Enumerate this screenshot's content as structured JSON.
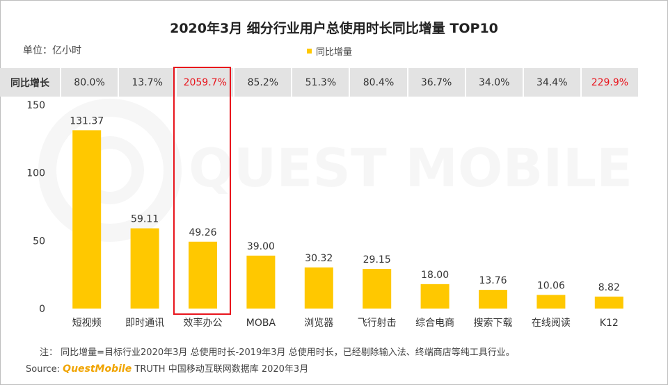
{
  "title": "2020年3月 细分行业用户总使用时长同比增量 TOP10",
  "unit": "单位：亿小时",
  "legend_label": "同比增量",
  "growth_row": {
    "header": "同比增长",
    "values": [
      "80.0%",
      "13.7%",
      "2059.7%",
      "85.2%",
      "51.3%",
      "80.4%",
      "36.7%",
      "34.0%",
      "34.4%",
      "229.9%"
    ],
    "highlighted_indices": [
      2,
      9
    ]
  },
  "chart_data": {
    "type": "bar",
    "title": "2020年3月 细分行业用户总使用时长同比增量 TOP10",
    "ylabel": "单位：亿小时",
    "xlabel": "",
    "categories": [
      "短视频",
      "即时通讯",
      "效率办公",
      "MOBA",
      "浏览器",
      "飞行射击",
      "综合电商",
      "搜索下载",
      "在线阅读",
      "K12"
    ],
    "series": [
      {
        "name": "同比增量",
        "values": [
          131.37,
          59.11,
          49.26,
          39.0,
          30.32,
          29.15,
          18.0,
          13.76,
          10.06,
          8.82
        ]
      }
    ],
    "value_labels": [
      "131.37",
      "59.11",
      "49.26",
      "39.00",
      "30.32",
      "29.15",
      "18.00",
      "13.76",
      "10.06",
      "8.82"
    ],
    "ylim": [
      0,
      150
    ],
    "yticks": [
      0,
      50,
      100,
      150
    ],
    "grid": false,
    "highlighted_category_index": 2
  },
  "colors": {
    "bar": "#ffc800",
    "highlight": "#e8141c",
    "table_bg": "#e3e3e3",
    "brand": "#f0a400"
  },
  "watermark": "QUEST MOBILE",
  "footnote": "注：   同比增量=目标行业2020年3月 总使用时长-2019年3月 总使用时长，已经剔除输入法、终端商店等纯工具行业。",
  "source": {
    "label": "Source:",
    "brand": "QuestMobile",
    "text": "TRUTH 中国移动互联网数据库 2020年3月"
  }
}
